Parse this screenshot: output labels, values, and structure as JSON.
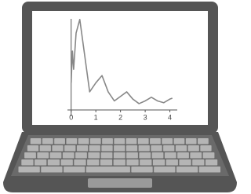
{
  "chart_data": {
    "type": "line",
    "x": [
      0,
      0.05,
      0.1,
      0.2,
      0.35,
      0.5,
      0.75,
      1.0,
      1.25,
      1.5,
      1.75,
      2.0,
      2.25,
      2.5,
      2.75,
      3.0,
      3.25,
      3.5,
      3.75,
      4.0,
      4.1
    ],
    "values": [
      0.3,
      0.65,
      0.45,
      0.85,
      1.0,
      0.7,
      0.2,
      0.3,
      0.38,
      0.2,
      0.1,
      0.15,
      0.2,
      0.12,
      0.07,
      0.1,
      0.14,
      0.1,
      0.08,
      0.12,
      0.13
    ],
    "color": "#888888",
    "xlim": [
      -0.15,
      4.3
    ],
    "ylim": [
      0,
      1.05
    ],
    "xticks": [
      0,
      1,
      2,
      3,
      4
    ]
  }
}
